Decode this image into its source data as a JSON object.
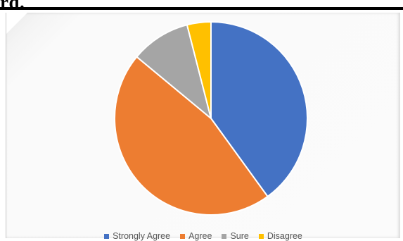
{
  "page": {
    "heading_fragment": "rd."
  },
  "chart_data": {
    "type": "pie",
    "title": "",
    "legend_position": "bottom",
    "categories": [
      "Strongly Agree",
      "Agree",
      "Sure",
      "Disagree"
    ],
    "values": [
      40,
      46,
      10,
      4
    ],
    "colors": [
      "#4472C4",
      "#ED7D31",
      "#A5A5A5",
      "#FFC000"
    ],
    "start_angle_deg": 0,
    "direction": "clockwise"
  }
}
